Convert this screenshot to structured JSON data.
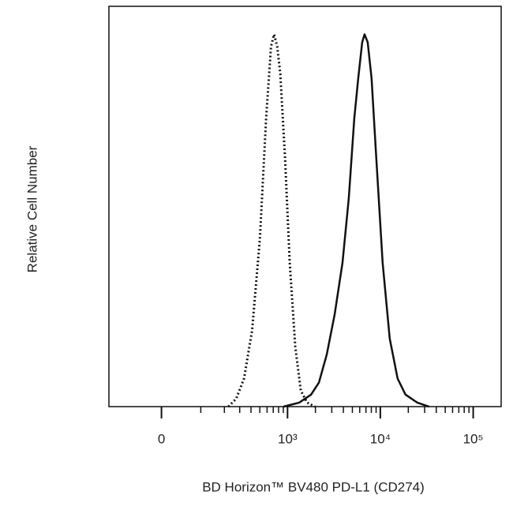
{
  "chart_data": {
    "type": "line",
    "xlabel": "BD Horizon™ BV480 PD-L1 (CD274)",
    "ylabel": "Relative Cell Number",
    "xscale": "biexponential",
    "xlim": [
      -150,
      200000
    ],
    "ylim": [
      0,
      100
    ],
    "xticks": [
      0,
      {
        "value": 1000,
        "label": "10³"
      },
      {
        "value": 10000,
        "label": "10⁴"
      },
      {
        "value": 100000,
        "label": "10⁵"
      }
    ],
    "minor_xticks": [
      100,
      200,
      300,
      400,
      500,
      600,
      700,
      800,
      900,
      2000,
      3000,
      4000,
      5000,
      6000,
      7000,
      8000,
      9000,
      20000,
      30000,
      40000,
      50000,
      60000,
      70000,
      80000,
      90000
    ],
    "series": [
      {
        "style": "dotted",
        "color": "#111111",
        "x": [
          223,
          274,
          335,
          411,
          501,
          586,
          662,
          715,
          773,
          836,
          940,
          1057,
          1212,
          1390,
          1625,
          1976
        ],
        "values": [
          0,
          2,
          7,
          19,
          42,
          72,
          90,
          93,
          90,
          83,
          62,
          36,
          15,
          4,
          1,
          0
        ]
      },
      {
        "style": "solid",
        "color": "#111111",
        "x": [
          905,
          1338,
          1793,
          2181,
          2650,
          3220,
          3915,
          4575,
          5245,
          5780,
          6370,
          6760,
          7305,
          8050,
          9055,
          10590,
          12630,
          15350,
          18650,
          25000,
          33500
        ],
        "values": [
          0,
          1,
          3,
          6,
          13,
          23,
          36,
          52,
          72,
          82,
          91,
          93,
          91,
          82,
          62,
          36,
          17,
          7,
          3,
          1,
          0
        ]
      }
    ]
  }
}
